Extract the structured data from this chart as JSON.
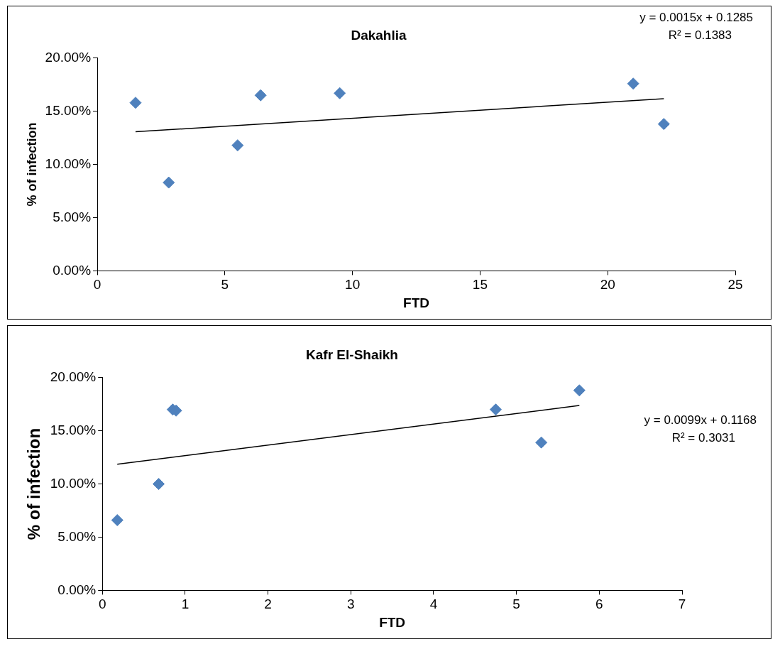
{
  "chart_data": [
    {
      "type": "scatter",
      "title": "Dakahlia",
      "xlabel": "FTD",
      "ylabel": "% of infection",
      "marker": "diamond",
      "grid": false,
      "legend": false,
      "xlim": [
        0,
        25
      ],
      "xticks": [
        0,
        5,
        10,
        15,
        20,
        25
      ],
      "ylim": [
        0,
        20
      ],
      "yticks": [
        {
          "value": 0,
          "label": "0.00%"
        },
        {
          "value": 5,
          "label": "5.00%"
        },
        {
          "value": 10,
          "label": "10.00%"
        },
        {
          "value": 15,
          "label": "15.00%"
        },
        {
          "value": 20,
          "label": "20.00%"
        }
      ],
      "series": [
        {
          "type": "scatter",
          "color": "#4f81bd",
          "x": [
            1.5,
            2.8,
            5.5,
            6.4,
            9.5,
            21.0,
            22.2
          ],
          "values": [
            15.8,
            8.3,
            11.8,
            16.5,
            16.7,
            17.6,
            13.8
          ]
        },
        {
          "type": "line",
          "marker": "none",
          "color": "#000000",
          "x": [
            1.5,
            22.2
          ],
          "values": [
            13.07,
            16.18
          ]
        }
      ],
      "annotations": [
        "y = 0.0015x + 0.1285",
        "R² = 0.1383"
      ]
    },
    {
      "type": "scatter",
      "title": "Kafr El-Shaikh",
      "xlabel": "FTD",
      "ylabel": "% of infection",
      "marker": "diamond",
      "grid": false,
      "legend": false,
      "xlim": [
        0,
        7
      ],
      "xticks": [
        0,
        1,
        2,
        3,
        4,
        5,
        6,
        7
      ],
      "ylim": [
        0,
        20
      ],
      "yticks": [
        {
          "value": 0,
          "label": "0.00%"
        },
        {
          "value": 5,
          "label": "5.00%"
        },
        {
          "value": 10,
          "label": "10.00%"
        },
        {
          "value": 15,
          "label": "15.00%"
        },
        {
          "value": 20,
          "label": "20.00%"
        }
      ],
      "series": [
        {
          "type": "scatter",
          "color": "#4f81bd",
          "x": [
            0.18,
            0.68,
            0.85,
            0.89,
            4.75,
            5.3,
            5.76
          ],
          "values": [
            6.6,
            10.0,
            17.0,
            16.9,
            17.0,
            13.9,
            18.8
          ]
        },
        {
          "type": "line",
          "marker": "none",
          "color": "#000000",
          "x": [
            0.18,
            5.76
          ],
          "values": [
            11.86,
            17.38
          ]
        }
      ],
      "annotations": [
        "y = 0.0099x + 0.1168",
        "R² = 0.3031"
      ]
    }
  ]
}
